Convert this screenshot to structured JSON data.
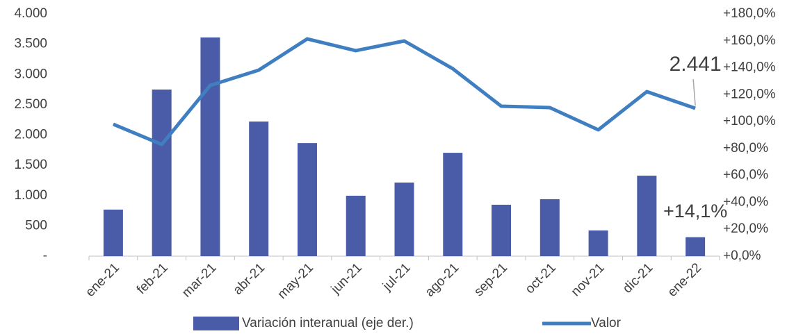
{
  "chart_data": {
    "type": "bar_line",
    "categories": [
      "ene-21",
      "feb-21",
      "mar-21",
      "abr-21",
      "may-21",
      "jun-21",
      "jul-21",
      "ago-21",
      "sep-21",
      "oct-21",
      "nov-21",
      "dic-21",
      "ene-22"
    ],
    "series": [
      {
        "name": "Variación interanual (eje der.)",
        "type": "bar",
        "axis": "y2",
        "color": "#4a5ba8",
        "values": [
          34.6,
          123.8,
          162.5,
          100,
          84,
          44.9,
          54.7,
          76.8,
          38.2,
          42.3,
          19.1,
          59.8,
          14.1
        ],
        "value_labels": [
          null,
          null,
          null,
          null,
          null,
          null,
          null,
          null,
          null,
          null,
          null,
          null,
          "+14,1%"
        ]
      },
      {
        "name": "Valor",
        "type": "line",
        "color": "#3f7fc1",
        "values": [
          2178,
          1845,
          2820,
          3072,
          3587,
          3393,
          3553,
          3095,
          2476,
          2453,
          2086,
          2716,
          2441
        ],
        "value_labels": [
          null,
          null,
          null,
          null,
          null,
          null,
          null,
          null,
          null,
          null,
          null,
          null,
          "2.441"
        ]
      }
    ],
    "ylim": [
      0,
      4000
    ],
    "yticks": [
      {
        "value": 0,
        "label": "-"
      },
      500,
      {
        "value": 1000,
        "label": "1.000"
      },
      {
        "value": 1500,
        "label": "1.500"
      },
      {
        "value": 2000,
        "label": "2.000"
      },
      {
        "value": 2500,
        "label": "2.500"
      },
      {
        "value": 3000,
        "label": "3.000"
      },
      {
        "value": 3500,
        "label": "3.500"
      },
      {
        "value": 4000,
        "label": "4.000"
      }
    ],
    "y2lim": [
      0,
      180
    ],
    "y2ticks": [
      {
        "value": 0,
        "label": "+0,0%"
      },
      {
        "value": 20,
        "label": "+20,0%"
      },
      {
        "value": 40,
        "label": "+40,0%"
      },
      {
        "value": 60,
        "label": "+60,0%"
      },
      {
        "value": 80,
        "label": "+80,0%"
      },
      {
        "value": 100,
        "label": "+100,0%"
      },
      {
        "value": 120,
        "label": "+120,0%"
      },
      {
        "value": 140,
        "label": "+140,0%"
      },
      {
        "value": 160,
        "label": "+160,0%"
      },
      {
        "value": 180,
        "label": "+180,0%"
      }
    ],
    "legend": "bottom"
  }
}
